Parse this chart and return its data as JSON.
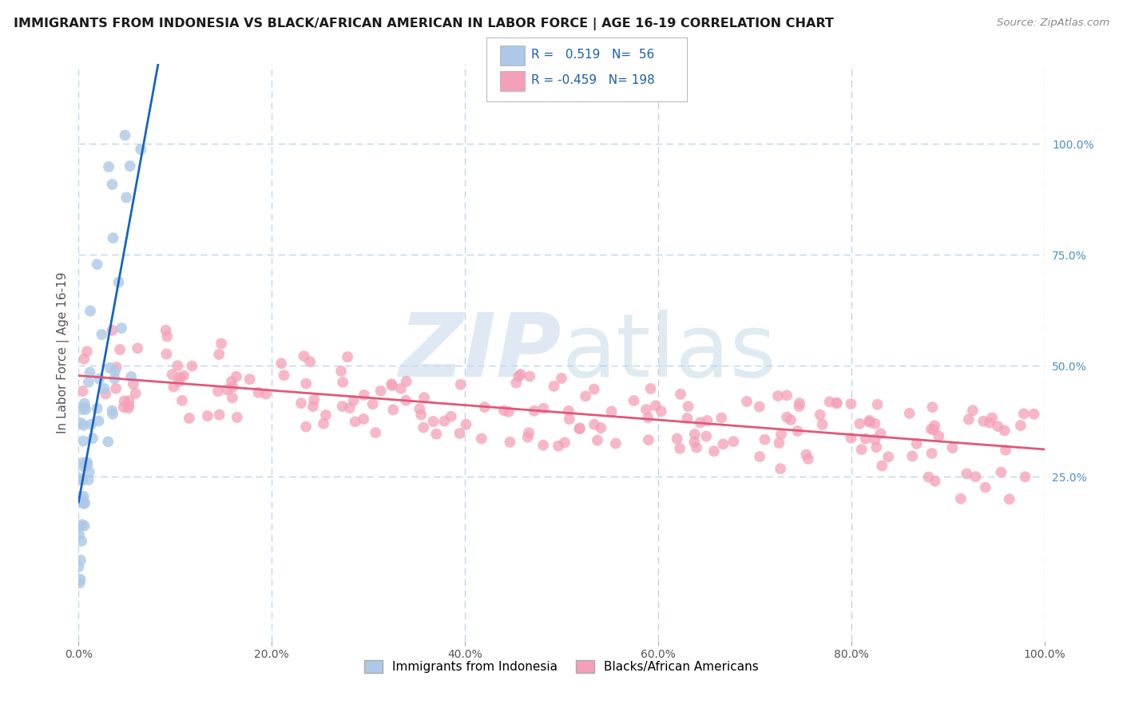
{
  "title": "IMMIGRANTS FROM INDONESIA VS BLACK/AFRICAN AMERICAN IN LABOR FORCE | AGE 16-19 CORRELATION CHART",
  "source": "Source: ZipAtlas.com",
  "ylabel": "In Labor Force | Age 16-19",
  "r_blue": 0.519,
  "n_blue": 56,
  "r_pink": -0.459,
  "n_pink": 198,
  "color_blue_fill": "#adc8e8",
  "color_blue_edge": "#adc8e8",
  "color_blue_line": "#1565c0",
  "color_pink_fill": "#f4a0b8",
  "color_pink_edge": "#f4a0b8",
  "color_pink_line": "#e05878",
  "legend_blue": "Immigrants from Indonesia",
  "legend_pink": "Blacks/African Americans",
  "background_color": "#ffffff",
  "grid_color": "#c0d4e8",
  "x_range": [
    0,
    1
  ],
  "y_range": [
    -0.12,
    1.18
  ]
}
